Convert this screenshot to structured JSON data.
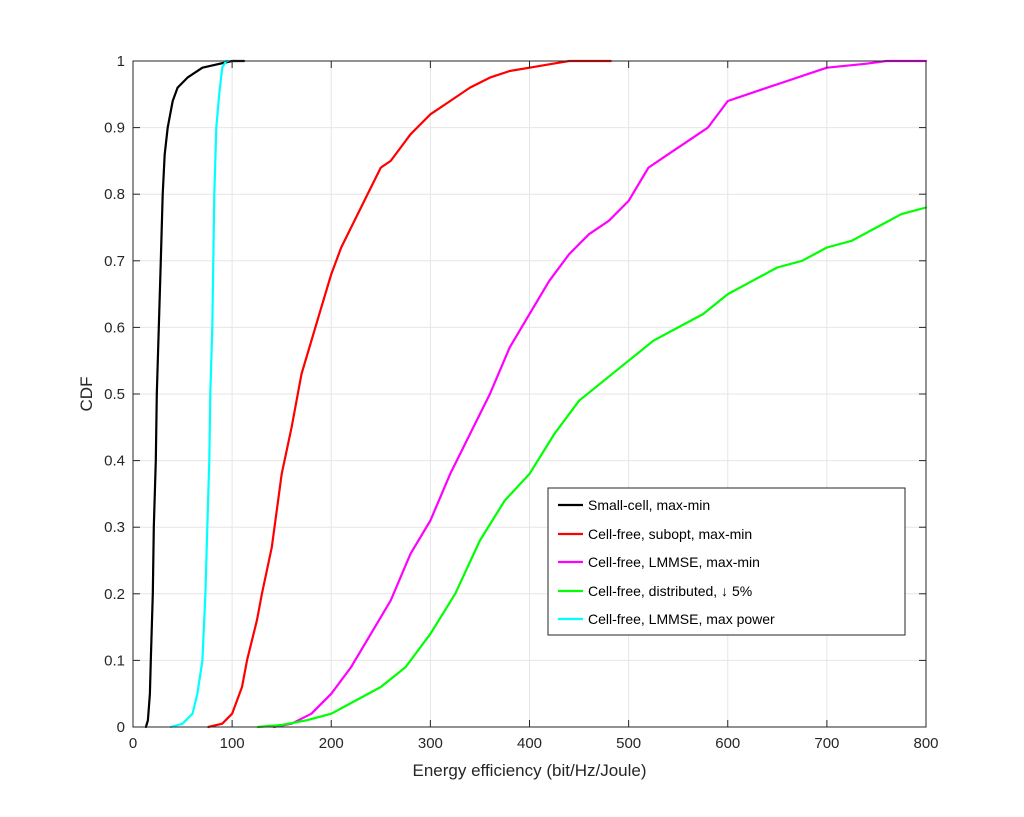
{
  "chart_data": {
    "type": "line",
    "xlabel": "Energy efficiency (bit/Hz/Joule)",
    "ylabel": "CDF",
    "xlim": [
      0,
      800
    ],
    "ylim": [
      0,
      1
    ],
    "xticks": [
      0,
      100,
      200,
      300,
      400,
      500,
      600,
      700,
      800
    ],
    "yticks": [
      0,
      0.1,
      0.2,
      0.3,
      0.4,
      0.5,
      0.6,
      0.7,
      0.8,
      0.9,
      1
    ],
    "xtick_labels": [
      "0",
      "100",
      "200",
      "300",
      "400",
      "500",
      "600",
      "700",
      "800"
    ],
    "ytick_labels": [
      "0",
      "0.1",
      "0.2",
      "0.3",
      "0.4",
      "0.5",
      "0.6",
      "0.7",
      "0.8",
      "0.9",
      "1"
    ],
    "grid": true,
    "legend_position": "lower-right",
    "series": [
      {
        "name": "Small-cell, max-min",
        "color": "#000000",
        "points": [
          [
            13,
            0
          ],
          [
            15,
            0.01
          ],
          [
            17,
            0.05
          ],
          [
            18,
            0.1
          ],
          [
            20,
            0.2
          ],
          [
            21,
            0.3
          ],
          [
            23,
            0.4
          ],
          [
            24,
            0.5
          ],
          [
            26,
            0.6
          ],
          [
            28,
            0.7
          ],
          [
            30,
            0.8
          ],
          [
            32,
            0.86
          ],
          [
            35,
            0.9
          ],
          [
            40,
            0.94
          ],
          [
            45,
            0.96
          ],
          [
            55,
            0.975
          ],
          [
            70,
            0.99
          ],
          [
            85,
            0.995
          ],
          [
            100,
            1.0
          ],
          [
            112,
            1.0
          ]
        ]
      },
      {
        "name": "Cell-free, subopt, max-min",
        "color": "#ff0000",
        "points": [
          [
            76,
            0
          ],
          [
            90,
            0.005
          ],
          [
            100,
            0.02
          ],
          [
            110,
            0.06
          ],
          [
            115,
            0.1
          ],
          [
            125,
            0.16
          ],
          [
            130,
            0.2
          ],
          [
            140,
            0.27
          ],
          [
            150,
            0.38
          ],
          [
            160,
            0.45
          ],
          [
            170,
            0.53
          ],
          [
            180,
            0.58
          ],
          [
            190,
            0.63
          ],
          [
            200,
            0.68
          ],
          [
            210,
            0.72
          ],
          [
            220,
            0.75
          ],
          [
            230,
            0.78
          ],
          [
            240,
            0.81
          ],
          [
            250,
            0.84
          ],
          [
            260,
            0.85
          ],
          [
            270,
            0.87
          ],
          [
            280,
            0.89
          ],
          [
            300,
            0.92
          ],
          [
            320,
            0.94
          ],
          [
            340,
            0.96
          ],
          [
            360,
            0.975
          ],
          [
            380,
            0.985
          ],
          [
            400,
            0.99
          ],
          [
            420,
            0.995
          ],
          [
            440,
            1.0
          ],
          [
            482,
            1.0
          ]
        ]
      },
      {
        "name": "Cell-free, LMMSE, max-min",
        "color": "#ff00ff",
        "points": [
          [
            142,
            0
          ],
          [
            160,
            0.005
          ],
          [
            180,
            0.02
          ],
          [
            200,
            0.05
          ],
          [
            220,
            0.09
          ],
          [
            240,
            0.14
          ],
          [
            260,
            0.19
          ],
          [
            280,
            0.26
          ],
          [
            300,
            0.31
          ],
          [
            320,
            0.38
          ],
          [
            340,
            0.44
          ],
          [
            360,
            0.5
          ],
          [
            380,
            0.57
          ],
          [
            400,
            0.62
          ],
          [
            420,
            0.67
          ],
          [
            440,
            0.71
          ],
          [
            460,
            0.74
          ],
          [
            480,
            0.76
          ],
          [
            500,
            0.79
          ],
          [
            520,
            0.84
          ],
          [
            540,
            0.86
          ],
          [
            560,
            0.88
          ],
          [
            580,
            0.9
          ],
          [
            600,
            0.94
          ],
          [
            620,
            0.95
          ],
          [
            640,
            0.96
          ],
          [
            660,
            0.97
          ],
          [
            680,
            0.98
          ],
          [
            700,
            0.99
          ],
          [
            720,
            0.993
          ],
          [
            740,
            0.996
          ],
          [
            760,
            1.0
          ],
          [
            800,
            1.0
          ]
        ]
      },
      {
        "name": "Cell-free, distributed, ↓ 5%",
        "color": "#00ff00",
        "points": [
          [
            126,
            0
          ],
          [
            150,
            0.003
          ],
          [
            175,
            0.01
          ],
          [
            200,
            0.02
          ],
          [
            225,
            0.04
          ],
          [
            250,
            0.06
          ],
          [
            275,
            0.09
          ],
          [
            300,
            0.14
          ],
          [
            325,
            0.2
          ],
          [
            350,
            0.28
          ],
          [
            375,
            0.34
          ],
          [
            400,
            0.38
          ],
          [
            425,
            0.44
          ],
          [
            450,
            0.49
          ],
          [
            475,
            0.52
          ],
          [
            500,
            0.55
          ],
          [
            525,
            0.58
          ],
          [
            550,
            0.6
          ],
          [
            575,
            0.62
          ],
          [
            600,
            0.65
          ],
          [
            625,
            0.67
          ],
          [
            650,
            0.69
          ],
          [
            675,
            0.7
          ],
          [
            700,
            0.72
          ],
          [
            725,
            0.73
          ],
          [
            750,
            0.75
          ],
          [
            775,
            0.77
          ],
          [
            800,
            0.78
          ]
        ]
      },
      {
        "name": "Cell-free, LMMSE, max power",
        "color": "#00ffff",
        "points": [
          [
            38,
            0
          ],
          [
            50,
            0.005
          ],
          [
            60,
            0.02
          ],
          [
            65,
            0.05
          ],
          [
            70,
            0.1
          ],
          [
            73,
            0.2
          ],
          [
            75,
            0.3
          ],
          [
            77,
            0.4
          ],
          [
            78,
            0.5
          ],
          [
            80,
            0.6
          ],
          [
            81,
            0.7
          ],
          [
            82,
            0.8
          ],
          [
            84,
            0.9
          ],
          [
            87,
            0.95
          ],
          [
            90,
            0.99
          ],
          [
            94,
            1.0
          ],
          [
            96,
            1.0
          ]
        ]
      }
    ]
  }
}
